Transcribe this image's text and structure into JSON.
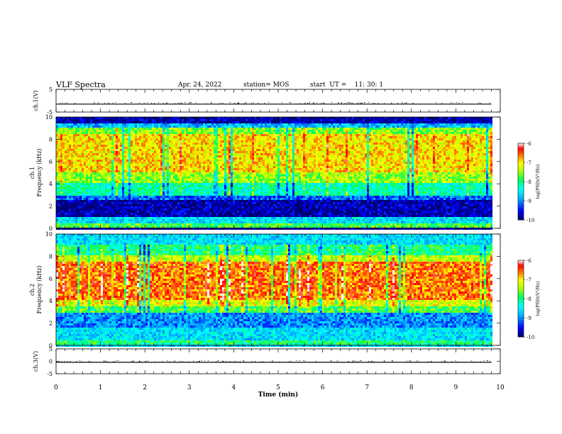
{
  "header": {
    "title": "VLF Spectra",
    "date": "Apr. 24, 2022",
    "station": "station= MOS",
    "start": "start  UT =    11: 30: 1"
  },
  "chart_data": [
    {
      "type": "line",
      "panel": "ch1-waveform",
      "ylabel": "ch.1(V)",
      "ylim": [
        -5,
        5
      ],
      "yticks": [
        "5",
        "-5"
      ],
      "x": [
        0,
        1,
        2,
        3,
        4,
        5,
        6,
        7,
        8,
        9,
        9.8
      ],
      "values": [
        -1.5,
        -1.5,
        -1.5,
        -1.5,
        -1.5,
        -1.5,
        -1.5,
        -1.5,
        -1.5,
        -1.5,
        -1.5
      ],
      "color": "#000000"
    },
    {
      "type": "heatmap",
      "panel": "ch1-spectrogram",
      "ylabel": "ch.1\nFrequency (kHz)",
      "ylim": [
        0,
        10
      ],
      "yticks": [
        "0",
        "2",
        "4",
        "6",
        "8",
        "10"
      ],
      "xlim": [
        0,
        10
      ],
      "data_end_min": 9.8,
      "colorbar": {
        "label": "log(PSD)(V²/Hz)",
        "ticks": [
          "-6",
          "-7",
          "-8",
          "-9",
          "-10"
        ],
        "range": [
          -10,
          -6
        ]
      },
      "bands_khz": [
        {
          "from": 0,
          "to": 0.5,
          "log_psd": -7.8
        },
        {
          "from": 0.5,
          "to": 1.0,
          "log_psd": -8.6
        },
        {
          "from": 1.0,
          "to": 2.5,
          "log_psd": -9.8
        },
        {
          "from": 2.5,
          "to": 3.0,
          "log_psd": -9.2
        },
        {
          "from": 3.0,
          "to": 4.0,
          "log_psd": -8.2
        },
        {
          "from": 4.0,
          "to": 5.0,
          "log_psd": -7.5
        },
        {
          "from": 5.0,
          "to": 8.5,
          "log_psd": -7.0
        },
        {
          "from": 8.5,
          "to": 9.0,
          "log_psd": -7.6
        },
        {
          "from": 9.0,
          "to": 9.5,
          "log_psd": -8.8
        },
        {
          "from": 9.5,
          "to": 10.0,
          "log_psd": -9.8
        }
      ]
    },
    {
      "type": "heatmap",
      "panel": "ch2-spectrogram",
      "ylabel": "ch.2\nFrequency (kHz)",
      "ylim": [
        0,
        10
      ],
      "yticks": [
        "0",
        "2",
        "4",
        "6",
        "8",
        "10"
      ],
      "xlim": [
        0,
        10
      ],
      "data_end_min": 9.8,
      "colorbar": {
        "label": "log(PSD)(V²/Hz)",
        "ticks": [
          "-6",
          "-7",
          "-8",
          "-9",
          "-10"
        ],
        "range": [
          -10,
          -6
        ]
      },
      "bands_khz": [
        {
          "from": 0,
          "to": 0.5,
          "log_psd": -8.0
        },
        {
          "from": 0.5,
          "to": 1.5,
          "log_psd": -8.6
        },
        {
          "from": 1.5,
          "to": 3.0,
          "log_psd": -9.0
        },
        {
          "from": 3.0,
          "to": 3.5,
          "log_psd": -7.8
        },
        {
          "from": 3.5,
          "to": 4.0,
          "log_psd": -7.2
        },
        {
          "from": 4.0,
          "to": 7.5,
          "log_psd": -6.6
        },
        {
          "from": 7.5,
          "to": 8.0,
          "log_psd": -7.3
        },
        {
          "from": 8.0,
          "to": 9.0,
          "log_psd": -8.0
        },
        {
          "from": 9.0,
          "to": 10.0,
          "log_psd": -8.6
        }
      ]
    },
    {
      "type": "line",
      "panel": "ch3-waveform",
      "ylabel": "ch.3(V)",
      "ylim": [
        -5,
        5
      ],
      "yticks": [
        "5",
        "0",
        "-5"
      ],
      "x": [
        0,
        1,
        2,
        3,
        4,
        5,
        6,
        7,
        8,
        9,
        9.8
      ],
      "values": [
        -0.4,
        -0.4,
        -0.4,
        -0.4,
        -0.4,
        -0.4,
        -0.4,
        -0.4,
        -0.4,
        -0.4,
        -0.4
      ],
      "color": "#000000"
    }
  ],
  "x_axis": {
    "label": "Time  (min)",
    "ticks": [
      "0",
      "1",
      "2",
      "3",
      "4",
      "5",
      "6",
      "7",
      "8",
      "9",
      "10"
    ],
    "range": [
      0,
      10
    ]
  },
  "colors": {
    "scale": [
      "#000080",
      "#0000ff",
      "#00ffff",
      "#00ff00",
      "#ffff00",
      "#ff8000",
      "#ff0000",
      "#ffffff"
    ]
  }
}
